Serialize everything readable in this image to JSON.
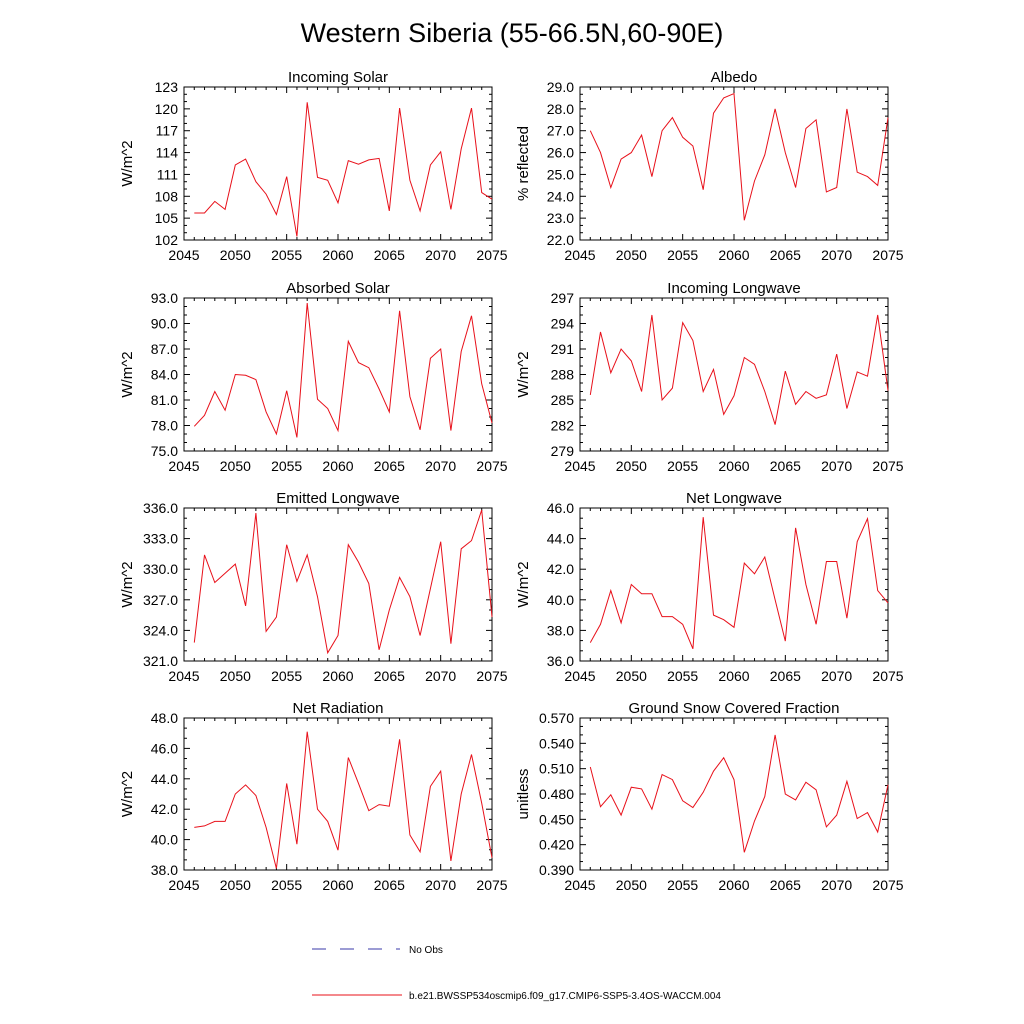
{
  "figure": {
    "title": "Western Siberia (55-66.5N,60-90E)",
    "line_color": "#e8101a",
    "obs_color": "#3a3aa8"
  },
  "legend": {
    "obs_label": "No Obs",
    "model_label": "b.e21.BWSSP534oscmip6.f09_g17.CMIP6-SSP5-3.4OS-WACCM.004"
  },
  "chart_data": [
    {
      "type": "line",
      "title": "Incoming Solar",
      "xlabel": "",
      "ylabel": "W/m^2",
      "xlim": [
        2045,
        2075
      ],
      "ylim": [
        102,
        123
      ],
      "xticks": [
        "2045",
        "2050",
        "2055",
        "2060",
        "2065",
        "2070",
        "2075"
      ],
      "yticks": [
        "102",
        "105",
        "108",
        "111",
        "114",
        "117",
        "120",
        "123"
      ],
      "series": [
        {
          "name": "b.e21.BWSSP534oscmip6.f09_g17.CMIP6-SSP5-3.4OS-WACCM.004",
          "x": [
            2046,
            2047,
            2048,
            2049,
            2050,
            2051,
            2052,
            2053,
            2054,
            2055,
            2056,
            2057,
            2058,
            2059,
            2060,
            2061,
            2062,
            2063,
            2064,
            2065,
            2066,
            2067,
            2068,
            2069,
            2070,
            2071,
            2072,
            2073,
            2074,
            2075
          ],
          "values": [
            105.7,
            105.7,
            107.3,
            106.2,
            112.3,
            113.1,
            110.0,
            108.3,
            105.5,
            110.7,
            102.5,
            120.9,
            110.6,
            110.2,
            107.1,
            112.9,
            112.4,
            113.0,
            113.2,
            106.0,
            120.1,
            110.2,
            106.0,
            112.3,
            114.1,
            106.2,
            114.5,
            120.1,
            108.5,
            107.6
          ]
        }
      ]
    },
    {
      "type": "line",
      "title": "Albedo",
      "xlabel": "",
      "ylabel": "% reflected",
      "xlim": [
        2045,
        2075
      ],
      "ylim": [
        22.0,
        29.0
      ],
      "xticks": [
        "2045",
        "2050",
        "2055",
        "2060",
        "2065",
        "2070",
        "2075"
      ],
      "yticks": [
        "22.0",
        "23.0",
        "24.0",
        "25.0",
        "26.0",
        "27.0",
        "28.0",
        "29.0"
      ],
      "series": [
        {
          "name": "b.e21.BWSSP534oscmip6.f09_g17.CMIP6-SSP5-3.4OS-WACCM.004",
          "x": [
            2046,
            2047,
            2048,
            2049,
            2050,
            2051,
            2052,
            2053,
            2054,
            2055,
            2056,
            2057,
            2058,
            2059,
            2060,
            2061,
            2062,
            2063,
            2064,
            2065,
            2066,
            2067,
            2068,
            2069,
            2070,
            2071,
            2072,
            2073,
            2074,
            2075
          ],
          "values": [
            27.0,
            26.0,
            24.4,
            25.7,
            26.0,
            26.8,
            24.9,
            27.0,
            27.6,
            26.7,
            26.3,
            24.3,
            27.8,
            28.5,
            28.7,
            22.9,
            24.7,
            25.9,
            28.0,
            26.0,
            24.4,
            27.1,
            27.5,
            24.2,
            24.4,
            28.0,
            25.1,
            24.9,
            24.5,
            27.6
          ]
        }
      ]
    },
    {
      "type": "line",
      "title": "Absorbed Solar",
      "xlabel": "",
      "ylabel": "W/m^2",
      "xlim": [
        2045,
        2075
      ],
      "ylim": [
        75.0,
        93.0
      ],
      "xticks": [
        "2045",
        "2050",
        "2055",
        "2060",
        "2065",
        "2070",
        "2075"
      ],
      "yticks": [
        "75.0",
        "78.0",
        "81.0",
        "84.0",
        "87.0",
        "90.0",
        "93.0"
      ],
      "series": [
        {
          "name": "b.e21.BWSSP534oscmip6.f09_g17.CMIP6-SSP5-3.4OS-WACCM.004",
          "x": [
            2046,
            2047,
            2048,
            2049,
            2050,
            2051,
            2052,
            2053,
            2054,
            2055,
            2056,
            2057,
            2058,
            2059,
            2060,
            2061,
            2062,
            2063,
            2064,
            2065,
            2066,
            2067,
            2068,
            2069,
            2070,
            2071,
            2072,
            2073,
            2074,
            2075
          ],
          "values": [
            77.9,
            79.2,
            82.0,
            79.8,
            84.0,
            83.9,
            83.4,
            79.6,
            77.0,
            82.1,
            76.6,
            92.4,
            81.1,
            80.0,
            77.4,
            87.9,
            85.4,
            84.8,
            82.3,
            79.6,
            91.5,
            81.4,
            77.5,
            85.9,
            87.0,
            77.4,
            86.7,
            90.9,
            82.9,
            78.3
          ]
        }
      ]
    },
    {
      "type": "line",
      "title": "Incoming Longwave",
      "xlabel": "",
      "ylabel": "W/m^2",
      "xlim": [
        2045,
        2075
      ],
      "ylim": [
        279,
        297
      ],
      "xticks": [
        "2045",
        "2050",
        "2055",
        "2060",
        "2065",
        "2070",
        "2075"
      ],
      "yticks": [
        "279",
        "282",
        "285",
        "288",
        "291",
        "294",
        "297"
      ],
      "series": [
        {
          "name": "b.e21.BWSSP534oscmip6.f09_g17.CMIP6-SSP5-3.4OS-WACCM.004",
          "x": [
            2046,
            2047,
            2048,
            2049,
            2050,
            2051,
            2052,
            2053,
            2054,
            2055,
            2056,
            2057,
            2058,
            2059,
            2060,
            2061,
            2062,
            2063,
            2064,
            2065,
            2066,
            2067,
            2068,
            2069,
            2070,
            2071,
            2072,
            2073,
            2074,
            2075
          ],
          "values": [
            285.6,
            293.0,
            288.2,
            291.0,
            289.6,
            286.0,
            295.0,
            285.0,
            286.4,
            294.1,
            292.0,
            286.0,
            288.6,
            283.3,
            285.5,
            290.0,
            289.2,
            286.0,
            282.1,
            288.4,
            284.5,
            286.0,
            285.2,
            285.6,
            290.4,
            284.0,
            288.3,
            287.8,
            295.0,
            286.1
          ]
        }
      ]
    },
    {
      "type": "line",
      "title": "Emitted Longwave",
      "xlabel": "",
      "ylabel": "W/m^2",
      "xlim": [
        2045,
        2075
      ],
      "ylim": [
        321.0,
        336.0
      ],
      "xticks": [
        "2045",
        "2050",
        "2055",
        "2060",
        "2065",
        "2070",
        "2075"
      ],
      "yticks": [
        "321.0",
        "324.0",
        "327.0",
        "330.0",
        "333.0",
        "336.0"
      ],
      "series": [
        {
          "name": "b.e21.BWSSP534oscmip6.f09_g17.CMIP6-SSP5-3.4OS-WACCM.004",
          "x": [
            2046,
            2047,
            2048,
            2049,
            2050,
            2051,
            2052,
            2053,
            2054,
            2055,
            2056,
            2057,
            2058,
            2059,
            2060,
            2061,
            2062,
            2063,
            2064,
            2065,
            2066,
            2067,
            2068,
            2069,
            2070,
            2071,
            2072,
            2073,
            2074,
            2075
          ],
          "values": [
            322.8,
            331.4,
            328.7,
            329.6,
            330.5,
            326.4,
            335.5,
            323.9,
            325.3,
            332.4,
            328.8,
            331.4,
            327.3,
            321.8,
            323.5,
            332.4,
            330.7,
            328.6,
            322.1,
            326.0,
            329.2,
            327.3,
            323.5,
            328.1,
            332.7,
            322.7,
            332.0,
            332.8,
            335.8,
            325.3
          ]
        }
      ]
    },
    {
      "type": "line",
      "title": "Net Longwave",
      "xlabel": "",
      "ylabel": "W/m^2",
      "xlim": [
        2045,
        2075
      ],
      "ylim": [
        36.0,
        46.0
      ],
      "xticks": [
        "2045",
        "2050",
        "2055",
        "2060",
        "2065",
        "2070",
        "2075"
      ],
      "yticks": [
        "36.0",
        "38.0",
        "40.0",
        "42.0",
        "44.0",
        "46.0"
      ],
      "series": [
        {
          "name": "b.e21.BWSSP534oscmip6.f09_g17.CMIP6-SSP5-3.4OS-WACCM.004",
          "x": [
            2046,
            2047,
            2048,
            2049,
            2050,
            2051,
            2052,
            2053,
            2054,
            2055,
            2056,
            2057,
            2058,
            2059,
            2060,
            2061,
            2062,
            2063,
            2064,
            2065,
            2066,
            2067,
            2068,
            2069,
            2070,
            2071,
            2072,
            2073,
            2074,
            2075
          ],
          "values": [
            37.2,
            38.4,
            40.6,
            38.5,
            41.0,
            40.4,
            40.4,
            38.9,
            38.9,
            38.4,
            36.8,
            45.4,
            39.0,
            38.7,
            38.2,
            42.4,
            41.7,
            42.8,
            40.0,
            37.3,
            44.7,
            41.0,
            38.4,
            42.5,
            42.5,
            38.8,
            43.8,
            45.3,
            40.6,
            39.8
          ]
        }
      ]
    },
    {
      "type": "line",
      "title": "Net Radiation",
      "xlabel": "",
      "ylabel": "W/m^2",
      "xlim": [
        2045,
        2075
      ],
      "ylim": [
        38.0,
        48.0
      ],
      "xticks": [
        "2045",
        "2050",
        "2055",
        "2060",
        "2065",
        "2070",
        "2075"
      ],
      "yticks": [
        "38.0",
        "40.0",
        "42.0",
        "44.0",
        "46.0",
        "48.0"
      ],
      "series": [
        {
          "name": "b.e21.BWSSP534oscmip6.f09_g17.CMIP6-SSP5-3.4OS-WACCM.004",
          "x": [
            2046,
            2047,
            2048,
            2049,
            2050,
            2051,
            2052,
            2053,
            2054,
            2055,
            2056,
            2057,
            2058,
            2059,
            2060,
            2061,
            2062,
            2063,
            2064,
            2065,
            2066,
            2067,
            2068,
            2069,
            2070,
            2071,
            2072,
            2073,
            2074,
            2075
          ],
          "values": [
            40.8,
            40.9,
            41.2,
            41.2,
            43.0,
            43.6,
            42.9,
            40.8,
            38.1,
            43.7,
            39.7,
            47.1,
            42.0,
            41.2,
            39.3,
            45.4,
            43.7,
            41.9,
            42.3,
            42.2,
            46.6,
            40.3,
            39.2,
            43.5,
            44.5,
            38.6,
            43.0,
            45.6,
            42.4,
            38.8
          ]
        }
      ]
    },
    {
      "type": "line",
      "title": "Ground Snow Covered Fraction",
      "xlabel": "",
      "ylabel": "unitless",
      "xlim": [
        2045,
        2075
      ],
      "ylim": [
        0.39,
        0.57
      ],
      "xticks": [
        "2045",
        "2050",
        "2055",
        "2060",
        "2065",
        "2070",
        "2075"
      ],
      "yticks": [
        "0.390",
        "0.420",
        "0.450",
        "0.480",
        "0.510",
        "0.540",
        "0.570"
      ],
      "series": [
        {
          "name": "b.e21.BWSSP534oscmip6.f09_g17.CMIP6-SSP5-3.4OS-WACCM.004",
          "x": [
            2046,
            2047,
            2048,
            2049,
            2050,
            2051,
            2052,
            2053,
            2054,
            2055,
            2056,
            2057,
            2058,
            2059,
            2060,
            2061,
            2062,
            2063,
            2064,
            2065,
            2066,
            2067,
            2068,
            2069,
            2070,
            2071,
            2072,
            2073,
            2074,
            2075
          ],
          "values": [
            0.512,
            0.465,
            0.479,
            0.455,
            0.488,
            0.486,
            0.462,
            0.503,
            0.497,
            0.472,
            0.464,
            0.482,
            0.507,
            0.523,
            0.497,
            0.411,
            0.448,
            0.477,
            0.55,
            0.48,
            0.473,
            0.494,
            0.485,
            0.441,
            0.455,
            0.495,
            0.451,
            0.458,
            0.435,
            0.491
          ]
        }
      ]
    }
  ]
}
